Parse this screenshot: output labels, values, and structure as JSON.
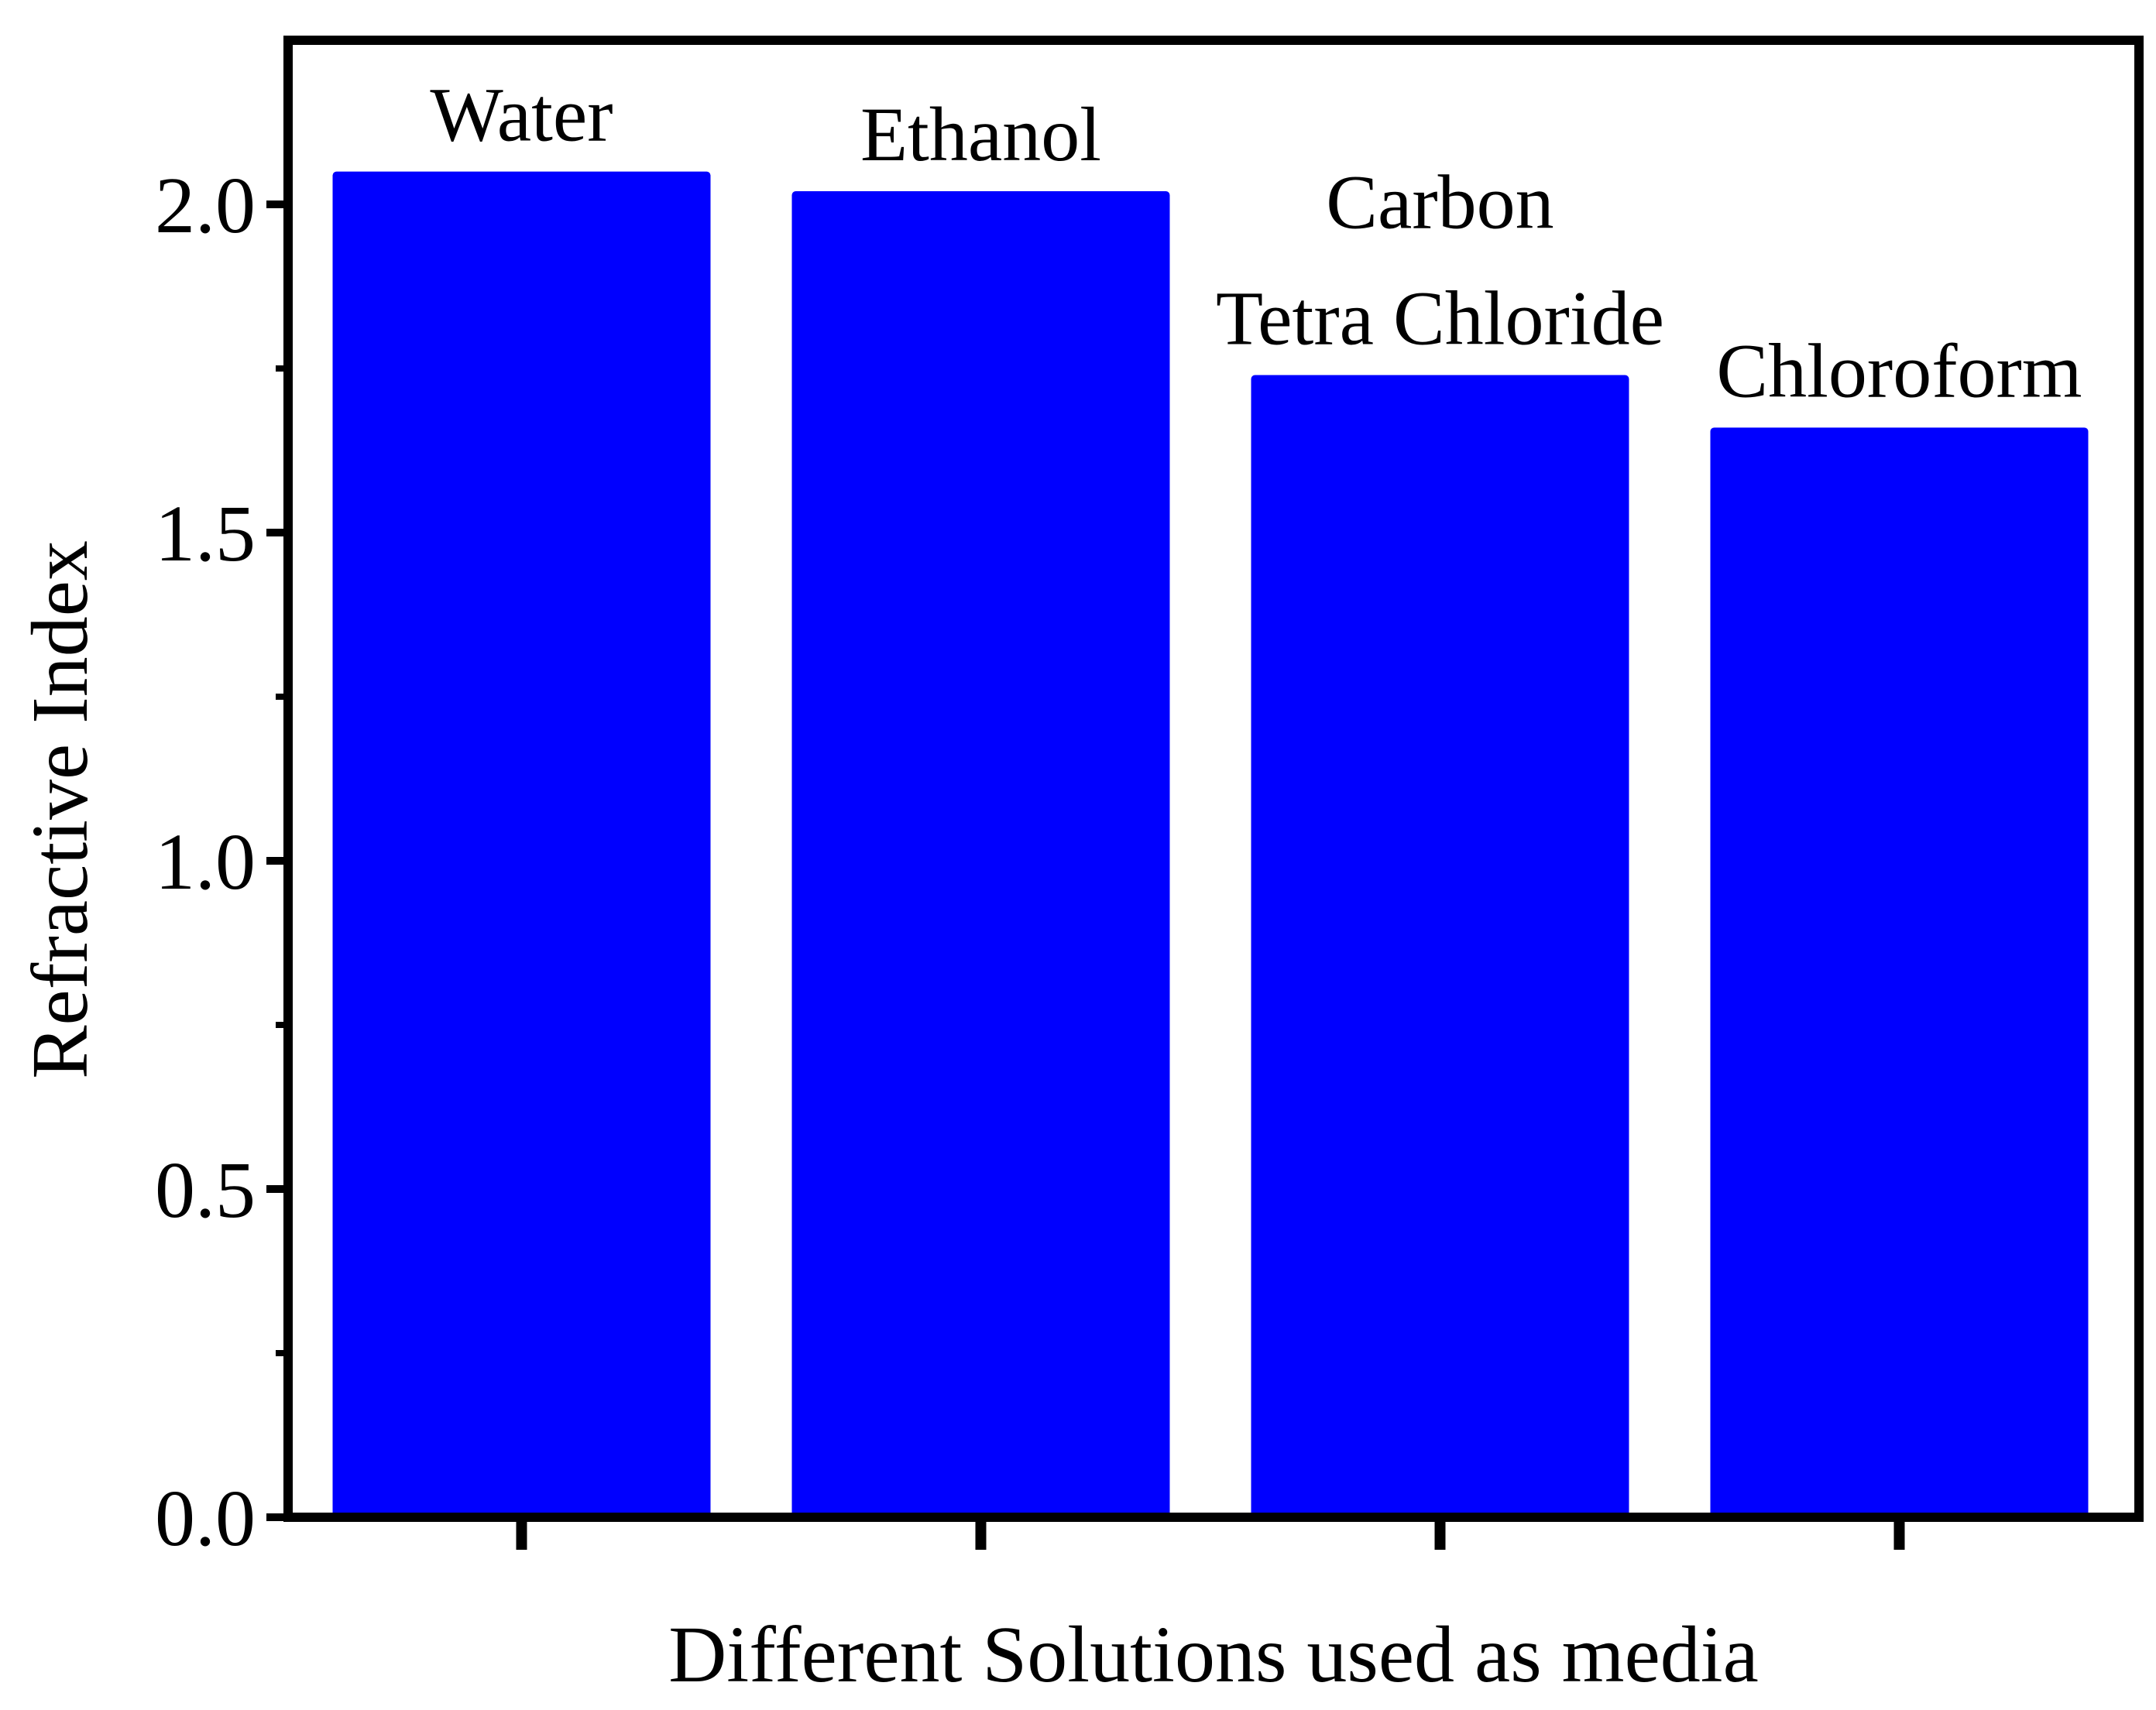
{
  "chart_data": {
    "type": "bar",
    "categories": [
      "Water",
      "Ethanol",
      "Carbon Tetra Chloride",
      "Chloroform"
    ],
    "category_labels": [
      [
        "Water"
      ],
      [
        "Ethanol"
      ],
      [
        "Carbon",
        "Tetra Chloride"
      ],
      [
        "Chloroform"
      ]
    ],
    "values": [
      2.05,
      2.02,
      1.74,
      1.66
    ],
    "bar_color": "#0000ff",
    "xlabel": "Different Solutions used as media",
    "ylabel": "Refractive Index",
    "ylim": [
      0,
      2.25
    ],
    "yticks": [
      "0.0",
      "0.5",
      "1.0",
      "1.5",
      "2.0"
    ],
    "ytick_values": [
      0,
      0.5,
      1.0,
      1.5,
      2.0
    ],
    "grid": false,
    "legend": "none"
  }
}
